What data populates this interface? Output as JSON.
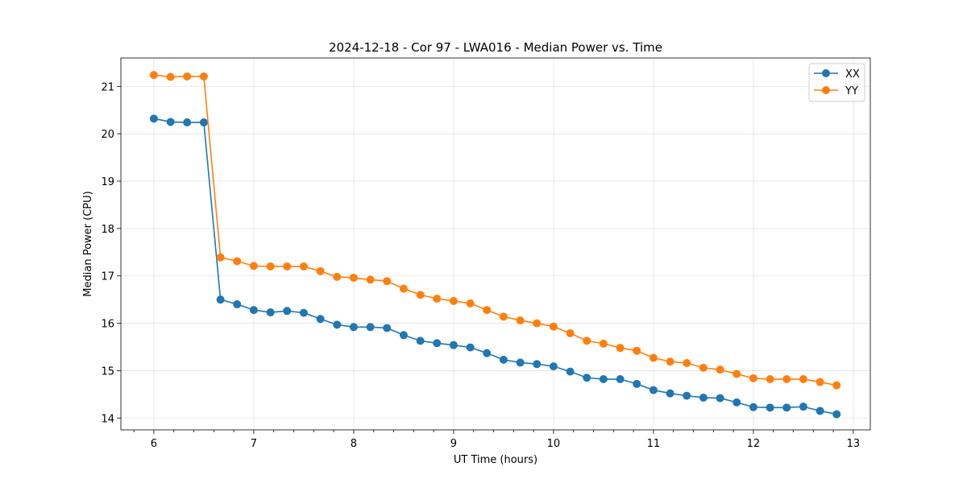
{
  "chart_data": {
    "type": "line",
    "title": "2024-12-18 - Cor 97 - LWA016 - Median Power vs. Time",
    "xlabel": "UT Time (hours)",
    "ylabel": "Median Power (CPU)",
    "xlim": [
      5.67,
      13.17
    ],
    "ylim": [
      13.75,
      21.6
    ],
    "xticks": [
      6,
      7,
      8,
      9,
      10,
      11,
      12,
      13
    ],
    "yticks": [
      14,
      15,
      16,
      17,
      18,
      19,
      20,
      21
    ],
    "grid": true,
    "legend_position": "top-right",
    "x": [
      6.0,
      6.167,
      6.333,
      6.5,
      6.667,
      6.833,
      7.0,
      7.167,
      7.333,
      7.5,
      7.667,
      7.833,
      8.0,
      8.167,
      8.333,
      8.5,
      8.667,
      8.833,
      9.0,
      9.167,
      9.333,
      9.5,
      9.667,
      9.833,
      10.0,
      10.167,
      10.333,
      10.5,
      10.667,
      10.833,
      11.0,
      11.167,
      11.333,
      11.5,
      11.667,
      11.833,
      12.0,
      12.167,
      12.333,
      12.5,
      12.667,
      12.833
    ],
    "series": [
      {
        "name": "XX",
        "color": "#1f77b4",
        "values": [
          20.32,
          20.25,
          20.24,
          20.24,
          16.5,
          16.4,
          16.28,
          16.23,
          16.26,
          16.22,
          16.09,
          15.97,
          15.92,
          15.92,
          15.9,
          15.75,
          15.63,
          15.58,
          15.54,
          15.49,
          15.37,
          15.23,
          15.17,
          15.14,
          15.09,
          14.98,
          14.85,
          14.82,
          14.82,
          14.72,
          14.59,
          14.52,
          14.47,
          14.43,
          14.42,
          14.33,
          14.23,
          14.22,
          14.22,
          14.24,
          14.15,
          14.08
        ]
      },
      {
        "name": "YY",
        "color": "#ff7f0e",
        "values": [
          21.24,
          21.2,
          21.21,
          21.21,
          17.39,
          17.31,
          17.21,
          17.2,
          17.2,
          17.2,
          17.1,
          16.98,
          16.96,
          16.92,
          16.89,
          16.73,
          16.6,
          16.52,
          16.47,
          16.42,
          16.28,
          16.14,
          16.06,
          16.0,
          15.93,
          15.79,
          15.63,
          15.57,
          15.48,
          15.42,
          15.27,
          15.19,
          15.16,
          15.06,
          15.02,
          14.93,
          14.84,
          14.82,
          14.82,
          14.82,
          14.76,
          14.69
        ]
      }
    ]
  }
}
